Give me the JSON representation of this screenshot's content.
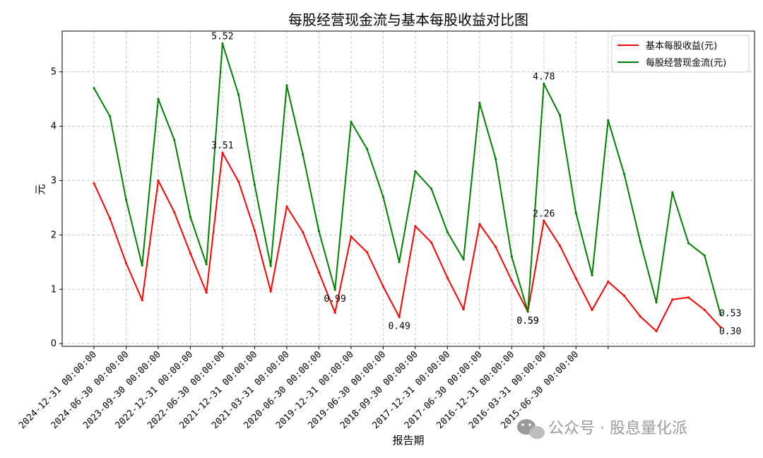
{
  "chart_data": {
    "type": "line",
    "title": "每股经营现金流与基本每股收益对比图",
    "xlabel": "报告期",
    "ylabel": "元",
    "ylim": [
      -0.05,
      5.75
    ],
    "yticks": [
      0,
      1,
      2,
      3,
      4,
      5
    ],
    "grid": true,
    "legend_position": "top-right",
    "x_tick_labels": [
      "2024-12-31 00:00:00",
      "2024-06-30 00:00:00",
      "2023-09-30 00:00:00",
      "2022-12-31 00:00:00",
      "2022-06-30 00:00:00",
      "2021-12-31 00:00:00",
      "2021-03-31 00:00:00",
      "2020-06-30 00:00:00",
      "2019-12-31 00:00:00",
      "2019-06-30 00:00:00",
      "2018-09-30 00:00:00",
      "2017-12-31 00:00:00",
      "2017-06-30 00:00:00",
      "2016-12-31 00:00:00",
      "2016-03-31 00:00:00",
      "2015-06-30 00:00:00"
    ],
    "x": [
      "2024-12-31",
      "2024-09-30",
      "2024-06-30",
      "2024-03-31",
      "2023-12-31",
      "2023-09-30",
      "2023-06-30",
      "2023-03-31",
      "2022-12-31",
      "2022-09-30",
      "2022-06-30",
      "2022-03-31",
      "2021-12-31",
      "2021-09-30",
      "2021-06-30",
      "2021-03-31",
      "2020-12-31",
      "2020-09-30",
      "2020-06-30",
      "2020-03-31",
      "2019-12-31",
      "2019-09-30",
      "2019-06-30",
      "2019-03-31",
      "2018-12-31",
      "2018-09-30",
      "2018-06-30",
      "2018-03-31",
      "2017-12-31",
      "2017-09-30",
      "2017-06-30",
      "2017-03-31",
      "2016-12-31",
      "2016-09-30",
      "2016-06-30",
      "2016-03-31",
      "2015-12-31",
      "2015-09-30",
      "2015-06-30",
      "2015-03-31"
    ],
    "series": [
      {
        "name": "基本每股收益(元)",
        "color": "#ff0000",
        "values": [
          2.95,
          2.3,
          1.48,
          0.8,
          3.0,
          2.42,
          1.66,
          0.94,
          3.51,
          2.98,
          2.08,
          0.96,
          2.52,
          2.05,
          1.31,
          0.57,
          1.97,
          1.68,
          1.05,
          0.49,
          2.16,
          1.86,
          1.21,
          0.63,
          2.2,
          1.78,
          1.16,
          0.59,
          2.26,
          1.8,
          1.2,
          0.62,
          1.14,
          0.88,
          0.5,
          0.23,
          0.81,
          0.85,
          0.62,
          0.3
        ]
      },
      {
        "name": "每股经营现金流(元)",
        "color": "#008000",
        "values": [
          4.7,
          4.18,
          2.65,
          1.44,
          4.5,
          3.75,
          2.33,
          1.46,
          5.52,
          4.58,
          2.92,
          1.43,
          4.75,
          3.48,
          2.07,
          0.99,
          4.08,
          3.58,
          2.7,
          1.5,
          3.17,
          2.85,
          2.05,
          1.55,
          4.43,
          3.4,
          1.6,
          0.59,
          4.78,
          4.2,
          2.4,
          1.26,
          4.11,
          3.12,
          1.88,
          0.76,
          2.78,
          1.85,
          1.62,
          0.53
        ]
      }
    ],
    "annotations": [
      {
        "series": 1,
        "index": 8,
        "text": "5.52"
      },
      {
        "series": 0,
        "index": 8,
        "text": "3.51"
      },
      {
        "series": 1,
        "index": 15,
        "text": "0.99"
      },
      {
        "series": 0,
        "index": 19,
        "text": "0.49"
      },
      {
        "series": 0,
        "index": 27,
        "text": "0.59"
      },
      {
        "series": 1,
        "index": 27,
        "text": "0.59"
      },
      {
        "series": 1,
        "index": 28,
        "text": "4.78"
      },
      {
        "series": 0,
        "index": 28,
        "text": "2.26"
      },
      {
        "series": 1,
        "index": 39,
        "text": "0.53"
      },
      {
        "series": 0,
        "index": 39,
        "text": "0.30"
      }
    ]
  },
  "watermark": "公众号 · 股息量化派"
}
